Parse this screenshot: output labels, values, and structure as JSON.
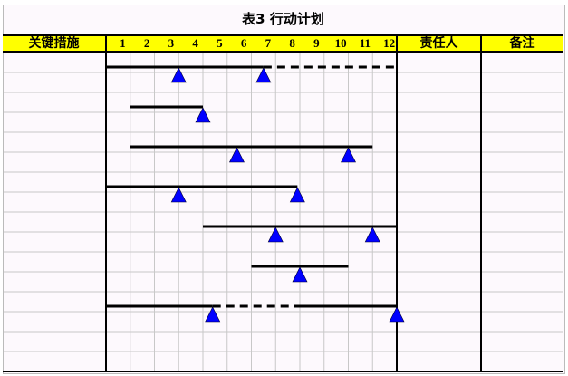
{
  "title": "表3 行动计划",
  "header": {
    "measures": "关键措施",
    "months": [
      "1",
      "2",
      "3",
      "4",
      "5",
      "6",
      "7",
      "8",
      "9",
      "10",
      "11",
      "12"
    ],
    "owner": "责任人",
    "remarks": "备注"
  },
  "colors": {
    "header_bg": "#ffff00",
    "milestone": "#0000ff",
    "bar": "#000000",
    "grid": "#c8c8c8"
  },
  "chart_data": {
    "type": "gantt",
    "title": "表3 行动计划",
    "x_unit": "month",
    "xlim": [
      0,
      12
    ],
    "tick_labels": [
      "1",
      "2",
      "3",
      "4",
      "5",
      "6",
      "7",
      "8",
      "9",
      "10",
      "11",
      "12"
    ],
    "grid": true,
    "tasks": [
      {
        "segments": [
          {
            "start": 0,
            "end": 6.5,
            "style": "solid"
          },
          {
            "start": 6.5,
            "end": 12,
            "style": "dashed"
          }
        ],
        "milestones": [
          3,
          6.5
        ],
        "row": 1
      },
      {
        "segments": [
          {
            "start": 1,
            "end": 4,
            "style": "solid"
          }
        ],
        "milestones": [
          4
        ],
        "row": 3
      },
      {
        "segments": [
          {
            "start": 1,
            "end": 11,
            "style": "solid"
          }
        ],
        "milestones": [
          5.4,
          10
        ],
        "row": 5
      },
      {
        "segments": [
          {
            "start": 0,
            "end": 7.9,
            "style": "solid"
          }
        ],
        "milestones": [
          3,
          7.9
        ],
        "row": 7
      },
      {
        "segments": [
          {
            "start": 4,
            "end": 12,
            "style": "solid"
          }
        ],
        "milestones": [
          7,
          11
        ],
        "row": 9
      },
      {
        "segments": [
          {
            "start": 6,
            "end": 10,
            "style": "solid"
          }
        ],
        "milestones": [
          8
        ],
        "row": 11
      },
      {
        "segments": [
          {
            "start": 0,
            "end": 4.4,
            "style": "solid"
          },
          {
            "start": 4.4,
            "end": 8,
            "style": "dashed"
          },
          {
            "start": 8,
            "end": 12,
            "style": "solid"
          }
        ],
        "milestones": [
          4.4,
          12
        ],
        "row": 13
      }
    ]
  }
}
